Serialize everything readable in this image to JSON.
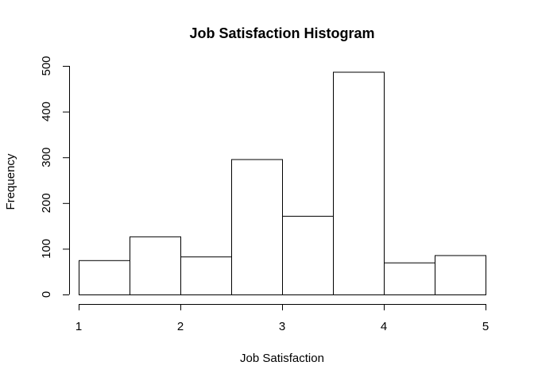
{
  "chart_data": {
    "type": "bar",
    "title": "Job Satisfaction Histogram",
    "xlabel": "Job Satisfaction",
    "ylabel": "Frequency",
    "bins": [
      {
        "start": 1.0,
        "end": 1.5,
        "value": 75
      },
      {
        "start": 1.5,
        "end": 2.0,
        "value": 127
      },
      {
        "start": 2.0,
        "end": 2.5,
        "value": 83
      },
      {
        "start": 2.5,
        "end": 3.0,
        "value": 296
      },
      {
        "start": 3.0,
        "end": 3.5,
        "value": 172
      },
      {
        "start": 3.5,
        "end": 4.0,
        "value": 487
      },
      {
        "start": 4.0,
        "end": 4.5,
        "value": 70
      },
      {
        "start": 4.5,
        "end": 5.0,
        "value": 86
      }
    ],
    "xlim": [
      1,
      5
    ],
    "ylim": [
      0,
      500
    ],
    "x_ticks": [
      "1",
      "2",
      "3",
      "4",
      "5"
    ],
    "y_ticks": [
      "0",
      "100",
      "200",
      "300",
      "400",
      "500"
    ],
    "grid": false,
    "bar_fill": "#ffffff",
    "bar_stroke": "#000000"
  }
}
